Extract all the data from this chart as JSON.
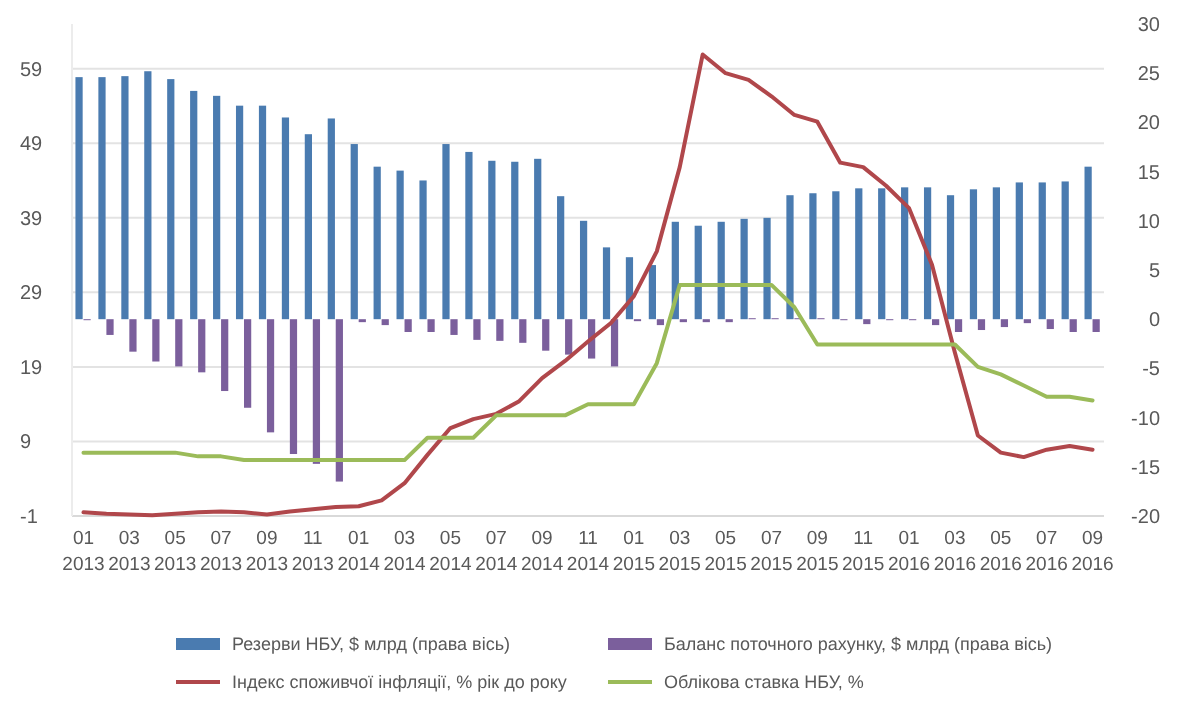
{
  "chart_data": {
    "type": "bar",
    "categories": [
      "01 2013",
      null,
      "03 2013",
      null,
      "05 2013",
      null,
      "07 2013",
      null,
      "09 2013",
      null,
      "11 2013",
      null,
      "01 2014",
      null,
      "03 2014",
      null,
      "05 2014",
      null,
      "07 2014",
      null,
      "09 2014",
      null,
      "11 2014",
      null,
      "01 2015",
      null,
      "03 2015",
      null,
      "05 2015",
      null,
      "07 2015",
      null,
      "09 2015",
      null,
      "11 2015",
      null,
      "01 2016",
      null,
      "03 2016",
      null,
      "05 2016",
      null,
      "07 2016",
      null,
      "09 2016"
    ],
    "series": [
      {
        "name": "Резерви НБУ, $ млрд (права вісь)",
        "axis": "y2",
        "color": "#4a7bb0",
        "values": [
          24.6,
          24.6,
          24.7,
          25.2,
          24.4,
          23.2,
          22.7,
          21.7,
          21.7,
          20.5,
          18.8,
          20.4,
          17.8,
          15.5,
          15.1,
          14.1,
          17.8,
          17.0,
          16.1,
          16.0,
          16.3,
          12.5,
          10.0,
          7.3,
          6.3,
          5.5,
          9.9,
          9.5,
          9.9,
          10.2,
          10.3,
          12.6,
          12.8,
          13.0,
          13.3,
          13.3,
          13.4,
          13.4,
          12.6,
          13.2,
          13.4,
          13.9,
          13.9,
          14.0,
          15.5
        ]
      },
      {
        "name": "Баланс поточного рахунку, $ млрд (права вісь)",
        "axis": "y2",
        "color": "#7b5f9c",
        "values": [
          -0.1,
          -1.6,
          -3.3,
          -4.3,
          -4.8,
          -5.4,
          -7.3,
          -9.0,
          -11.5,
          -13.7,
          -14.7,
          -16.5,
          -0.3,
          -0.6,
          -1.3,
          -1.3,
          -1.6,
          -2.1,
          -2.2,
          -2.4,
          -3.2,
          -3.6,
          -4.0,
          -4.8,
          -0.2,
          -0.6,
          -0.3,
          -0.3,
          -0.3,
          0.1,
          0.1,
          0.1,
          0.1,
          -0.1,
          -0.5,
          -0.1,
          -0.1,
          -0.6,
          -1.3,
          -1.1,
          -0.8,
          -0.4,
          -1.0,
          -1.3,
          -1.3
        ]
      },
      {
        "name": "Індекс споживчої інфляції, % рік до року",
        "type": "line",
        "color": "#b0474b",
        "values": [
          -0.5,
          -0.7,
          -0.8,
          -0.9,
          -0.7,
          -0.5,
          -0.4,
          -0.5,
          -0.8,
          -0.4,
          -0.1,
          0.2,
          0.3,
          1.1,
          3.4,
          7.2,
          10.8,
          12.0,
          12.7,
          14.4,
          17.5,
          19.8,
          22.4,
          24.9,
          28.5,
          34.5,
          45.8,
          60.9,
          58.4,
          57.5,
          55.3,
          52.8,
          51.9,
          46.4,
          45.8,
          43.3,
          40.3,
          32.7,
          20.9,
          9.8,
          7.5,
          6.9,
          7.9,
          8.4,
          7.9
        ]
      },
      {
        "name": "Облікова ставка НБУ, %",
        "type": "line",
        "color": "#9bbb59",
        "values": [
          7.5,
          7.5,
          7.5,
          7.5,
          7.5,
          7.0,
          7.0,
          6.5,
          6.5,
          6.5,
          6.5,
          6.5,
          6.5,
          6.5,
          6.5,
          9.5,
          9.5,
          9.5,
          12.5,
          12.5,
          12.5,
          12.5,
          14,
          14,
          14,
          19.5,
          30,
          30,
          30,
          30,
          30,
          27,
          22,
          22,
          22,
          22,
          22,
          22,
          22,
          19,
          18,
          16.5,
          15,
          15,
          14.5
        ]
      }
    ],
    "ylim": [
      -1,
      65
    ],
    "yticks": [
      -1,
      9,
      19,
      29,
      39,
      49,
      59
    ],
    "y2lim": [
      -20,
      30
    ],
    "y2ticks": [
      -20,
      -15,
      -10,
      -5,
      0,
      5,
      10,
      15,
      20,
      25,
      30
    ],
    "grid": "y",
    "legend": "bottom"
  }
}
